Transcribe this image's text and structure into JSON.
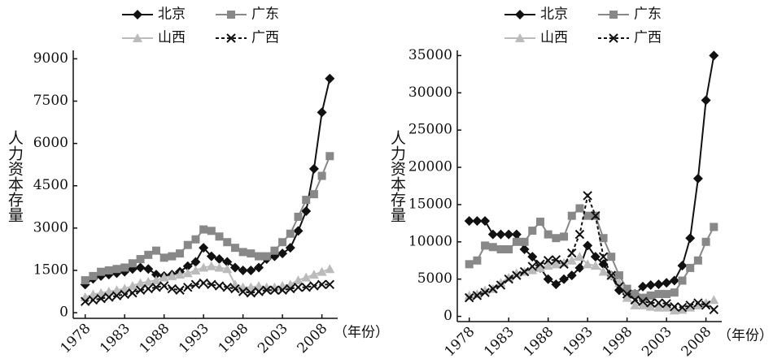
{
  "chart_data": [
    {
      "type": "line",
      "y_label": "人力资本存量",
      "x_label": "（年份）",
      "x": [
        1978,
        1979,
        1980,
        1981,
        1982,
        1983,
        1984,
        1985,
        1986,
        1987,
        1988,
        1989,
        1990,
        1991,
        1992,
        1993,
        1994,
        1995,
        1996,
        1997,
        1998,
        1999,
        2000,
        2001,
        2002,
        2003,
        2004,
        2005,
        2006,
        2007,
        2008,
        2009
      ],
      "xlim": [
        1977,
        2010
      ],
      "xticks": [
        1978,
        1983,
        1988,
        1993,
        1998,
        2003,
        2008
      ],
      "ylim": [
        -200,
        9300
      ],
      "yticks": [
        0,
        1500,
        3000,
        4500,
        6000,
        7500,
        9000
      ],
      "series": [
        {
          "name": "北京",
          "color": "#111111",
          "marker": "diamond",
          "dash": false,
          "values": [
            1000,
            1200,
            1300,
            1350,
            1400,
            1450,
            1550,
            1600,
            1550,
            1350,
            1300,
            1350,
            1450,
            1650,
            1800,
            2300,
            2000,
            1900,
            1800,
            1600,
            1500,
            1500,
            1600,
            1900,
            2000,
            2100,
            2300,
            2900,
            3600,
            5100,
            7100,
            8300
          ]
        },
        {
          "name": "广东",
          "color": "#888888",
          "marker": "square",
          "dash": false,
          "values": [
            1150,
            1300,
            1450,
            1500,
            1550,
            1600,
            1750,
            1900,
            2050,
            2200,
            1950,
            2000,
            2100,
            2400,
            2600,
            2950,
            2900,
            2700,
            2500,
            2300,
            2150,
            2100,
            2000,
            2000,
            2200,
            2500,
            2800,
            3400,
            4000,
            4200,
            4850,
            5550
          ]
        },
        {
          "name": "山西",
          "color": "#bbbbbb",
          "marker": "triangle",
          "dash": false,
          "values": [
            550,
            650,
            700,
            750,
            800,
            850,
            950,
            1050,
            1100,
            1150,
            1250,
            1300,
            1350,
            1400,
            1500,
            1600,
            1650,
            1600,
            1550,
            1000,
            900,
            900,
            950,
            900,
            900,
            950,
            1000,
            1150,
            1250,
            1350,
            1450,
            1550
          ]
        },
        {
          "name": "广西",
          "color": "#111111",
          "marker": "cross",
          "dash": true,
          "values": [
            400,
            450,
            500,
            550,
            600,
            650,
            700,
            800,
            850,
            900,
            950,
            850,
            800,
            900,
            1000,
            1050,
            1000,
            950,
            900,
            850,
            750,
            700,
            750,
            800,
            800,
            800,
            850,
            900,
            900,
            950,
            1000,
            1000
          ]
        }
      ]
    },
    {
      "type": "line",
      "y_label": "人力资本存量",
      "x_label": "（年份）",
      "x": [
        1978,
        1979,
        1980,
        1981,
        1982,
        1983,
        1984,
        1985,
        1986,
        1987,
        1988,
        1989,
        1990,
        1991,
        1992,
        1993,
        1994,
        1995,
        1996,
        1997,
        1998,
        1999,
        2000,
        2001,
        2002,
        2003,
        2004,
        2005,
        2006,
        2007,
        2008,
        2009
      ],
      "xlim": [
        1977,
        2010
      ],
      "xticks": [
        1978,
        1983,
        1988,
        1993,
        1998,
        2003,
        2008
      ],
      "ylim": [
        -700,
        35700
      ],
      "yticks": [
        0,
        5000,
        10000,
        15000,
        20000,
        25000,
        30000,
        35000
      ],
      "series": [
        {
          "name": "北京",
          "color": "#111111",
          "marker": "diamond",
          "dash": false,
          "values": [
            12800,
            12800,
            12800,
            11000,
            11000,
            11000,
            11000,
            9000,
            8000,
            6500,
            5000,
            4300,
            5000,
            5500,
            6500,
            9500,
            8000,
            7000,
            5500,
            3500,
            3000,
            3000,
            4000,
            4200,
            4300,
            4500,
            4800,
            6800,
            10500,
            18500,
            29000,
            35000
          ]
        },
        {
          "name": "广东",
          "color": "#888888",
          "marker": "square",
          "dash": false,
          "values": [
            7000,
            7500,
            9500,
            9300,
            9000,
            9000,
            10000,
            10000,
            11500,
            12700,
            11000,
            10500,
            10700,
            13500,
            14500,
            13500,
            13500,
            10500,
            8000,
            5500,
            3700,
            3000,
            2500,
            2800,
            3000,
            3000,
            3200,
            4800,
            6500,
            7500,
            10000,
            12000
          ]
        },
        {
          "name": "山西",
          "color": "#bbbbbb",
          "marker": "triangle",
          "dash": false,
          "values": [
            2800,
            3000,
            3500,
            3700,
            4500,
            5200,
            5800,
            6000,
            6200,
            6500,
            6800,
            7000,
            7200,
            7500,
            8000,
            7000,
            6800,
            6000,
            5500,
            4500,
            2500,
            1500,
            1500,
            1300,
            1200,
            1200,
            800,
            900,
            1200,
            1500,
            1800,
            2200
          ]
        },
        {
          "name": "广西",
          "color": "#111111",
          "marker": "cross",
          "dash": true,
          "values": [
            2500,
            2800,
            3200,
            3700,
            4200,
            5000,
            5500,
            6000,
            6700,
            7000,
            7500,
            7600,
            7000,
            8500,
            11000,
            16200,
            13500,
            8000,
            5500,
            4000,
            3000,
            2200,
            2000,
            1800,
            1800,
            1700,
            1300,
            1200,
            1500,
            1800,
            1500,
            900
          ]
        }
      ]
    }
  ]
}
